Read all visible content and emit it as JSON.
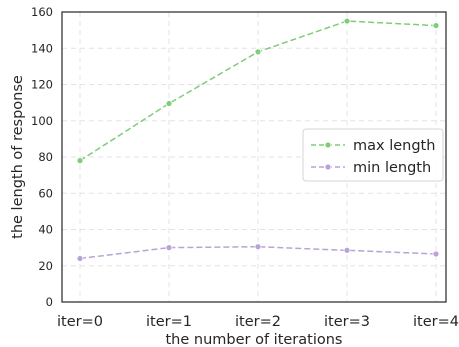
{
  "chart_data": {
    "type": "line",
    "categories": [
      "iter=0",
      "iter=1",
      "iter=2",
      "iter=3",
      "iter=4"
    ],
    "series": [
      {
        "name": "max length",
        "values": [
          78,
          109.5,
          138,
          155,
          152.5
        ],
        "color": "#7fcc79"
      },
      {
        "name": "min length",
        "values": [
          24,
          30,
          30.5,
          28.5,
          26.5
        ],
        "color": "#b9a3d6"
      }
    ],
    "xlabel": "the number of iterations",
    "ylabel": "the length of response",
    "ylim": [
      0,
      160
    ],
    "yticks": [
      0,
      20,
      40,
      60,
      80,
      100,
      120,
      140,
      160
    ],
    "grid": true,
    "line_style": "dashed",
    "marker": "circle",
    "legend_position": "center-right"
  }
}
